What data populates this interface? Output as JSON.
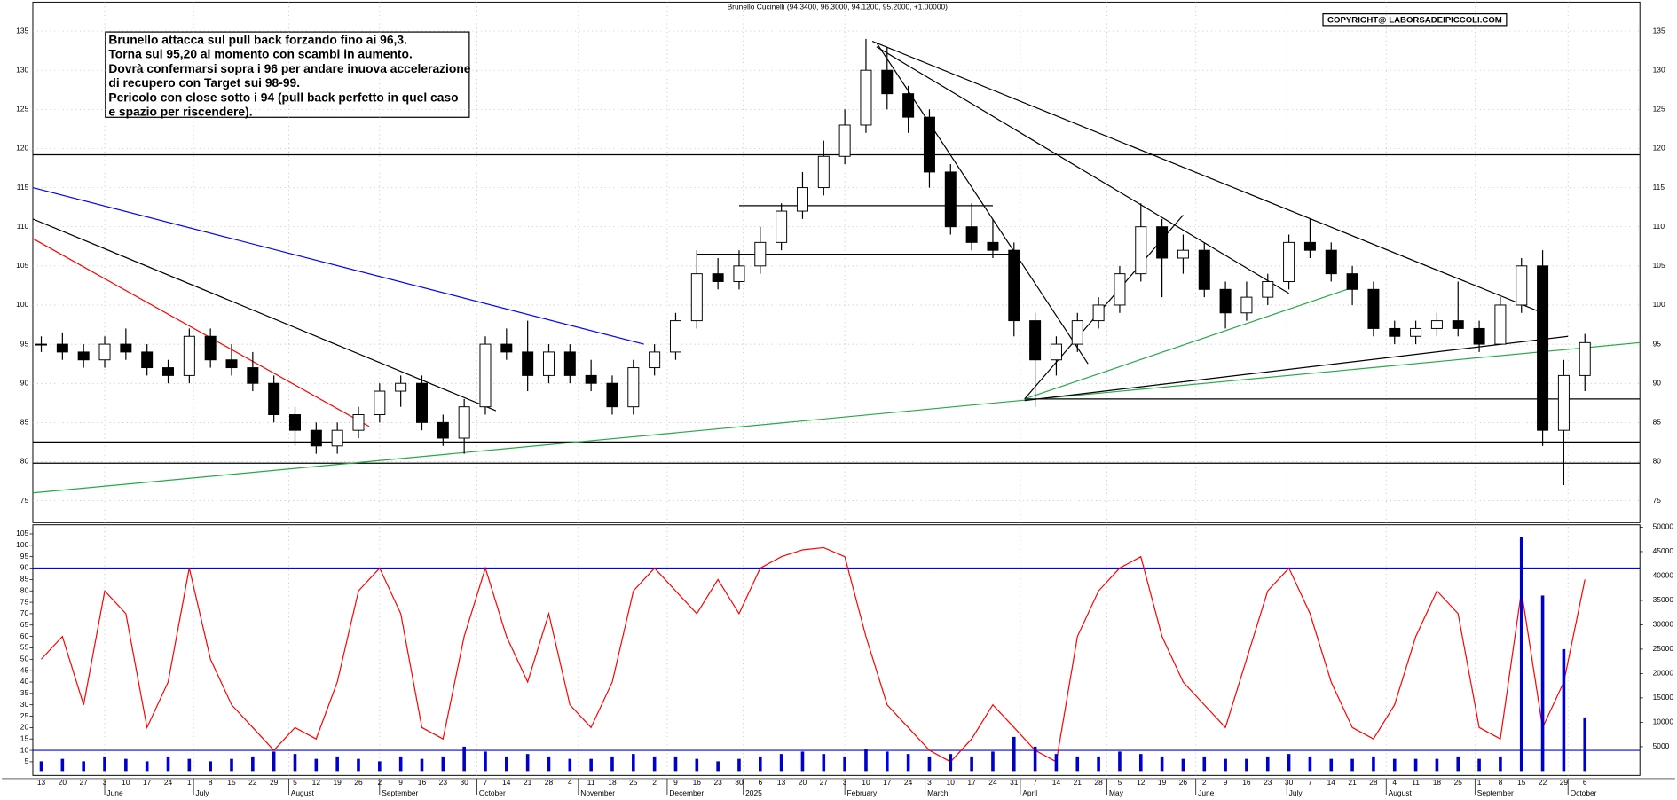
{
  "chart_data": [
    {
      "type": "candlestick",
      "title": "Brunello Cucinelli (94.3400, 96.3000, 94.1200, 95.2000, +1.00000)",
      "copyright": "COPYRIGHT@ LABORSADEIPICCOLI.COM",
      "note": [
        "Brunello attacca sul pull back forzando fino ai 96,3.",
        "Torna sui 95,20 al momento con scambi in aumento.",
        "Dovrà confermarsi sopra i 96 per andare inuova accelerazione",
        "di recupero con Target sui 98-99.",
        "Pericolo con close sotto i 94 (pull back perfetto in quel caso",
        "e spazio per riscendere)."
      ],
      "categories": [
        "13",
        "20",
        "27",
        "3",
        "10",
        "17",
        "24",
        "1",
        "8",
        "15",
        "22",
        "29",
        "5",
        "12",
        "19",
        "26",
        "2",
        "9",
        "16",
        "23",
        "30",
        "7",
        "14",
        "21",
        "28",
        "4",
        "11",
        "18",
        "25",
        "2",
        "9",
        "16",
        "23",
        "30",
        "6",
        "13",
        "20",
        "27",
        "3",
        "10",
        "17",
        "24",
        "3",
        "10",
        "17",
        "24",
        "31",
        "7",
        "14",
        "21",
        "28",
        "5",
        "12",
        "19",
        "26",
        "2",
        "9",
        "16",
        "23",
        "30",
        "7",
        "14",
        "21",
        "28",
        "4",
        "11",
        "18",
        "25",
        "1",
        "8",
        "15",
        "22",
        "29",
        "6"
      ],
      "open": [
        95,
        95,
        94,
        93,
        95,
        94,
        92,
        91,
        96,
        93,
        92,
        90,
        86,
        84,
        82,
        84,
        86,
        89,
        90,
        85,
        83,
        87,
        95,
        94,
        91,
        94,
        91,
        90,
        87,
        92,
        94,
        98,
        104,
        103,
        105,
        108,
        112,
        115,
        119,
        123,
        130,
        127,
        124,
        117,
        110,
        108,
        107,
        98,
        93,
        95,
        98,
        100,
        104,
        110,
        106,
        107,
        102,
        99,
        101,
        103,
        108,
        107,
        104,
        102,
        97,
        96,
        97,
        98,
        97,
        95,
        100,
        105,
        84,
        91
      ],
      "high": [
        96,
        96.5,
        95,
        96,
        97,
        95,
        93,
        97,
        97,
        95,
        94,
        91,
        87,
        85,
        85,
        87,
        90,
        91,
        91,
        86,
        88,
        96,
        97,
        98,
        95,
        95,
        93,
        91,
        93,
        95,
        99,
        107,
        106,
        107,
        110,
        113,
        117,
        121,
        125,
        134,
        133,
        128,
        125,
        118,
        113,
        111,
        108,
        99,
        96,
        99,
        101,
        105,
        113,
        111,
        109,
        108,
        103,
        103,
        104,
        109,
        111,
        108,
        105,
        103,
        98,
        98,
        99,
        103,
        98,
        101,
        106,
        107,
        93,
        96.3
      ],
      "low": [
        94,
        93,
        92,
        92,
        93,
        91,
        90,
        90,
        92,
        91,
        89,
        85,
        82,
        81,
        81,
        83,
        85,
        87,
        84,
        82,
        81,
        86,
        93,
        89,
        90,
        90,
        89,
        86,
        86,
        91,
        93,
        97,
        102,
        102,
        104,
        107,
        111,
        114,
        118,
        122,
        125,
        122,
        115,
        109,
        107,
        106,
        96,
        87,
        91,
        94,
        97,
        99,
        103,
        101,
        104,
        101,
        97,
        98,
        100,
        102,
        106,
        103,
        100,
        96,
        95,
        95,
        96,
        96,
        94,
        95,
        99,
        82,
        77,
        89
      ],
      "close": [
        95,
        94,
        93,
        95,
        94,
        92,
        91,
        96,
        93,
        92,
        90,
        86,
        84,
        82,
        84,
        86,
        89,
        90,
        85,
        83,
        87,
        95,
        94,
        91,
        94,
        91,
        90,
        87,
        92,
        94,
        98,
        104,
        103,
        105,
        108,
        112,
        115,
        119,
        123,
        130,
        127,
        124,
        117,
        110,
        108,
        107,
        98,
        93,
        95,
        98,
        100,
        104,
        110,
        106,
        107,
        102,
        99,
        101,
        103,
        108,
        107,
        104,
        102,
        97,
        96,
        97,
        98,
        97,
        95,
        100,
        105,
        84,
        91,
        95.2
      ],
      "xlim": [
        -0.4,
        75.6
      ],
      "ylim": [
        72.2,
        138.7
      ],
      "yticks": [
        75,
        80,
        85,
        90,
        95,
        100,
        105,
        110,
        115,
        120,
        125,
        130,
        135
      ],
      "xticks": [
        {
          "value": 3,
          "label": "June"
        },
        {
          "value": 7.2,
          "label": "July"
        },
        {
          "value": 11.7,
          "label": "August"
        },
        {
          "value": 16,
          "label": "September"
        },
        {
          "value": 20.6,
          "label": "October"
        },
        {
          "value": 25.4,
          "label": "November"
        },
        {
          "value": 29.6,
          "label": "December"
        },
        {
          "value": 33.2,
          "label": "2025"
        },
        {
          "value": 38,
          "label": "February"
        },
        {
          "value": 41.8,
          "label": "March"
        },
        {
          "value": 46.3,
          "label": "April"
        },
        {
          "value": 50.4,
          "label": "May"
        },
        {
          "value": 54.6,
          "label": "June"
        },
        {
          "value": 58.9,
          "label": "July"
        },
        {
          "value": 63.6,
          "label": "August"
        },
        {
          "value": 67.8,
          "label": "September"
        },
        {
          "value": 72.2,
          "label": "October"
        }
      ],
      "lines": [
        {
          "x": [
            -0.4,
            75.6
          ],
          "y": [
            119.2,
            119.2
          ],
          "color": "#000000"
        },
        {
          "x": [
            -0.4,
            75.6
          ],
          "y": [
            82.5,
            82.5
          ],
          "color": "#000000"
        },
        {
          "x": [
            -0.4,
            75.6
          ],
          "y": [
            79.8,
            79.8
          ],
          "color": "#000000"
        },
        {
          "x": [
            46.5,
            75.6
          ],
          "y": [
            88,
            88
          ],
          "color": "#000000"
        },
        {
          "x": [
            33,
            45
          ],
          "y": [
            112.7,
            112.7
          ],
          "color": "#000000"
        },
        {
          "x": [
            31,
            46
          ],
          "y": [
            106.5,
            106.5
          ],
          "color": "#000000"
        },
        {
          "x": [
            -0.4,
            21.5
          ],
          "y": [
            111,
            86.5
          ],
          "color": "#000000"
        },
        {
          "x": [
            -0.4,
            15.5
          ],
          "y": [
            108.5,
            84.5
          ],
          "color": "#ff0000"
        },
        {
          "x": [
            -0.4,
            28.5
          ],
          "y": [
            115,
            95
          ],
          "color": "#0000ff"
        },
        {
          "x": [
            -0.4,
            75.6
          ],
          "y": [
            76,
            95.2
          ],
          "color": "#22aa44"
        },
        {
          "x": [
            39.3,
            71
          ],
          "y": [
            133.7,
            99
          ],
          "color": "#000000"
        },
        {
          "x": [
            39.5,
            49.5
          ],
          "y": [
            133.5,
            92.5
          ],
          "color": "#000000"
        },
        {
          "x": [
            46.5,
            72.2
          ],
          "y": [
            87.8,
            96
          ],
          "color": "#000000"
        },
        {
          "x": [
            46.5,
            62.3
          ],
          "y": [
            88,
            102.5
          ],
          "color": "#22aa44"
        },
        {
          "x": [
            46.5,
            54
          ],
          "y": [
            88,
            111.5
          ],
          "color": "#000000"
        },
        {
          "x": [
            39.5,
            59
          ],
          "y": [
            133,
            101.5
          ],
          "color": "#000000"
        }
      ]
    },
    {
      "type": "line",
      "ylim": [
        -1,
        109
      ],
      "yticks": [
        5,
        10,
        15,
        20,
        25,
        30,
        35,
        40,
        45,
        50,
        55,
        60,
        65,
        70,
        75,
        80,
        85,
        90,
        95,
        100,
        105
      ],
      "y2lim": [
        -900,
        50500
      ],
      "y2ticks": [
        5000,
        10000,
        15000,
        20000,
        25000,
        30000,
        35000,
        40000,
        45000,
        50000
      ],
      "levels": [
        10,
        90
      ],
      "level_color": "#0000ff",
      "series": [
        {
          "color": "#ff0000",
          "values": [
            50,
            60,
            30,
            80,
            70,
            20,
            40,
            90,
            50,
            30,
            20,
            10,
            20,
            15,
            40,
            80,
            90,
            70,
            20,
            15,
            60,
            90,
            60,
            40,
            70,
            30,
            20,
            40,
            80,
            90,
            80,
            70,
            85,
            70,
            90,
            95,
            98,
            99,
            95,
            60,
            30,
            20,
            10,
            5,
            15,
            30,
            20,
            10,
            5,
            60,
            80,
            90,
            95,
            60,
            40,
            30,
            20,
            50,
            80,
            90,
            70,
            40,
            20,
            15,
            30,
            60,
            80,
            70,
            20,
            15,
            80,
            20,
            40,
            85
          ]
        },
        {
          "type": "bar",
          "axis": "y2",
          "color": "#0000cc",
          "values": [
            2000,
            2500,
            2000,
            3000,
            2500,
            2000,
            3000,
            2500,
            2000,
            2500,
            3000,
            4000,
            3500,
            2500,
            3000,
            2500,
            2000,
            3000,
            2500,
            3000,
            5000,
            4000,
            3000,
            3500,
            3000,
            2500,
            2500,
            3000,
            3500,
            3000,
            3000,
            2500,
            2000,
            2500,
            3000,
            3500,
            4000,
            3500,
            3000,
            4500,
            4000,
            3500,
            3000,
            3500,
            3000,
            4000,
            7000,
            5000,
            3500,
            3000,
            3000,
            4000,
            3500,
            3000,
            2500,
            3000,
            2500,
            2500,
            3000,
            3500,
            3000,
            2500,
            2500,
            3000,
            2500,
            2500,
            2500,
            3000,
            2500,
            3000,
            48000,
            36000,
            25000,
            11000
          ]
        }
      ]
    }
  ]
}
